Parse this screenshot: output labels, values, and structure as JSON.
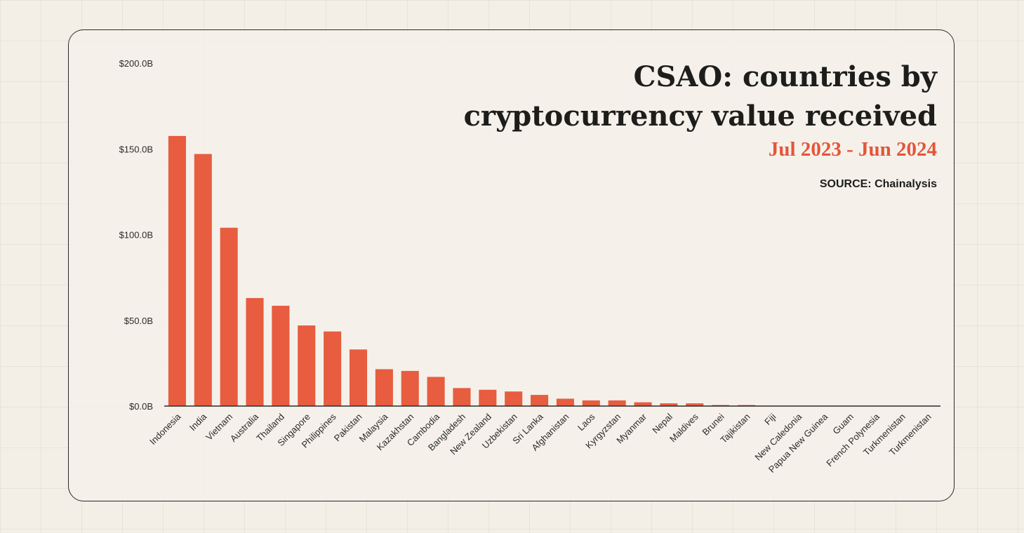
{
  "chart_data": {
    "type": "bar",
    "title": "CSAO: countries by cryptocurrency value received",
    "title_line1": "CSAO: countries by",
    "title_line2": "cryptocurrency value received",
    "subtitle": "Jul 2023 - Jun 2024",
    "source": "SOURCE: Chainalysis",
    "xlabel": "",
    "ylabel": "",
    "ylim": [
      0,
      200
    ],
    "yticks": [
      0,
      50,
      100,
      150,
      200
    ],
    "ytick_labels": [
      "$0.0B",
      "$50.0B",
      "$100.0B",
      "$150.0B",
      "$200.0B"
    ],
    "categories": [
      "Indonesia",
      "India",
      "Vietnam",
      "Australia",
      "Thailand",
      "Singapore",
      "Philippines",
      "Pakistan",
      "Malaysia",
      "Kazakhstan",
      "Cambodia",
      "Bangladesh",
      "New Zealand",
      "Uzbekistan",
      "Sri Lanka",
      "Afghanistan",
      "Laos",
      "Kyrgyzstan",
      "Myanmar",
      "Nepal",
      "Maldives",
      "Brunei",
      "Tajikistan",
      "Fiji",
      "New Caledonia",
      "Papua New Guinea",
      "Guam",
      "French Polynesia",
      "Turkmenistan",
      "Turkmenistan"
    ],
    "values": [
      157.5,
      147,
      104,
      63,
      58.5,
      47,
      43.5,
      33,
      21.5,
      20.5,
      17,
      10.5,
      9.5,
      8.5,
      6.5,
      4.3,
      3.3,
      3.3,
      2.2,
      1.6,
      1.6,
      0.6,
      0.6,
      0.1,
      0.05,
      0.05,
      0.03,
      0.03,
      0.02,
      0.02
    ],
    "bar_color": "#e85c40",
    "axis_color": "#2b2b2b"
  }
}
